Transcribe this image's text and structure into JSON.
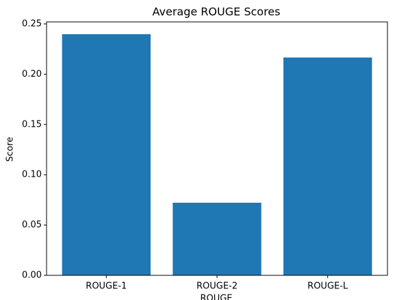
{
  "chart_data": {
    "type": "bar",
    "title": "Average ROUGE Scores",
    "xlabel": "ROUGE",
    "ylabel": "Score",
    "categories": [
      "ROUGE-1",
      "ROUGE-2",
      "ROUGE-L"
    ],
    "values": [
      0.2398,
      0.0722,
      0.2166
    ],
    "color": "#1f77b4",
    "ylim": [
      0,
      0.252
    ],
    "yticks": [
      {
        "value": 0,
        "label": "0.00"
      },
      0.05,
      {
        "value": 0.1,
        "label": "0.10"
      },
      0.15,
      {
        "value": 0.2,
        "label": "0.20"
      },
      0.25
    ]
  }
}
